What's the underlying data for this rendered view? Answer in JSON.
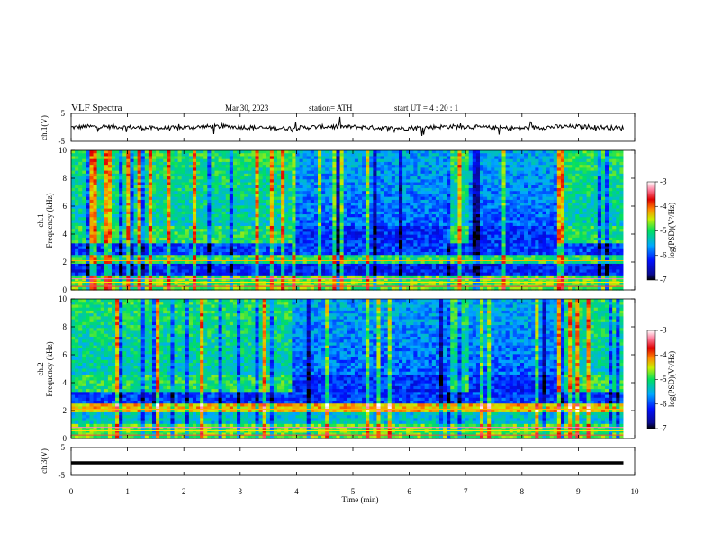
{
  "header": {
    "title": "VLF  Spectra",
    "date": "Mar.30, 2023",
    "station": "station= ATH",
    "start_ut": "start  UT  =   4  : 20 : 1"
  },
  "chart_data": [
    {
      "type": "line",
      "panel": "ch1-waveform",
      "ylabel": "ch.1(V)",
      "yticks": [
        "5",
        "-5"
      ],
      "ylim": [
        -5,
        5
      ],
      "x_range_min": [
        0,
        9.8
      ],
      "level": 0,
      "color": "#000000"
    },
    {
      "type": "heatmap",
      "panel": "ch1-spectrogram",
      "ylabel_line1": "ch.1",
      "ylabel_line2": "Frequency  (kHz)",
      "yticks": [
        "0",
        "2",
        "4",
        "6",
        "8",
        "10"
      ],
      "ylim_khz": [
        0,
        10
      ],
      "colorbar": {
        "label": "log(PSD)(V²/Hz)",
        "ticks": [
          "-3",
          "-4",
          "-5",
          "-6",
          "-7"
        ],
        "range": [
          -7,
          -3
        ]
      }
    },
    {
      "type": "heatmap",
      "panel": "ch2-spectrogram",
      "ylabel_line1": "ch.2",
      "ylabel_line2": "Frequency  (kHz)",
      "yticks": [
        "0",
        "2",
        "4",
        "6",
        "8",
        "10"
      ],
      "ylim_khz": [
        0,
        10
      ],
      "colorbar": {
        "label": "log(PSD)(V²/Hz)",
        "ticks": [
          "-3",
          "-4",
          "-5",
          "-6",
          "-7"
        ],
        "range": [
          -7,
          -3
        ]
      }
    },
    {
      "type": "line",
      "panel": "ch3-waveform",
      "ylabel": "ch.3(V)",
      "yticks": [
        "5",
        "-5"
      ],
      "ylim": [
        -5,
        5
      ],
      "x_range_min": [
        0,
        9.8
      ],
      "level": -0.5,
      "color": "#000000"
    }
  ],
  "xaxis": {
    "label": "Time  (min)",
    "ticks": [
      "0",
      "1",
      "2",
      "3",
      "4",
      "5",
      "6",
      "7",
      "8",
      "9",
      "10"
    ],
    "xlim": [
      0,
      10
    ]
  },
  "colorbar_label_super": "log(PSD)(V²/Hz)"
}
